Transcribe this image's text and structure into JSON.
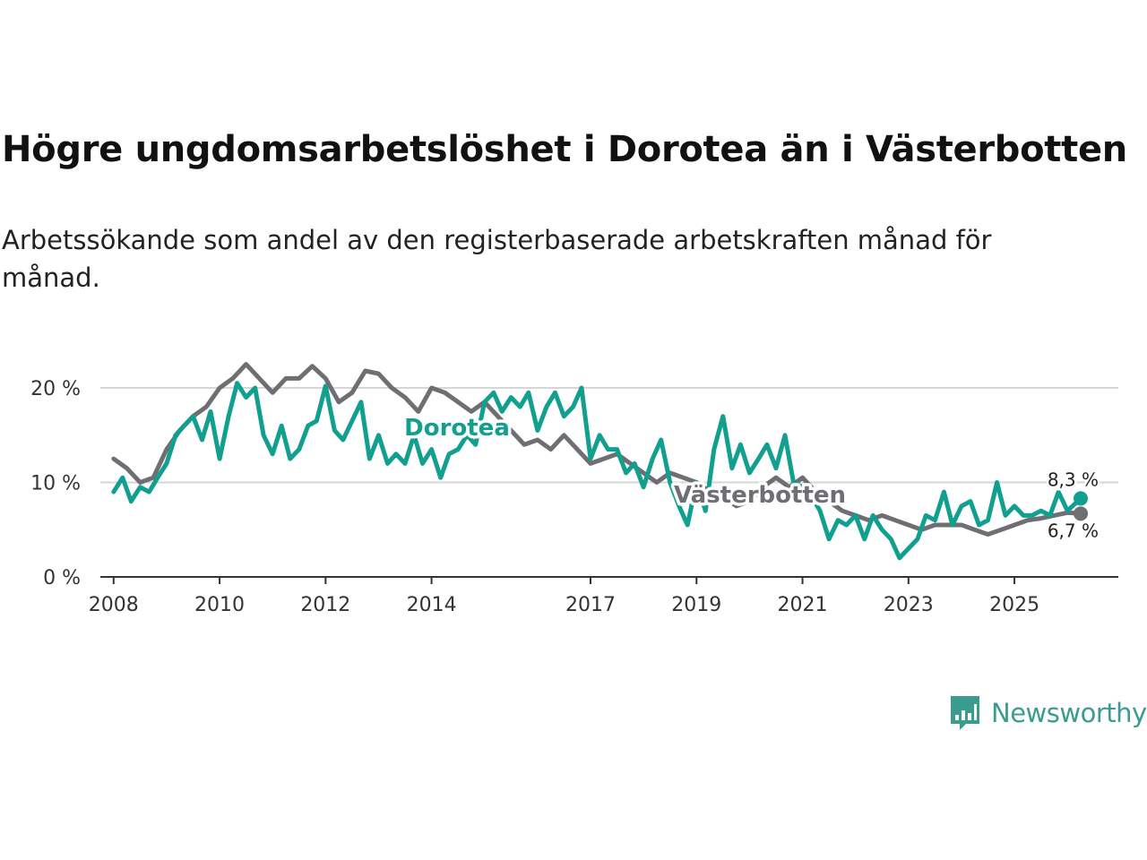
{
  "title": "Högre ungdomsarbetslöshet i Dorotea än i Västerbotten",
  "subtitle": "Arbetssökande som andel av den registerbaserade arbetskraften månad för månad.",
  "brand": {
    "name": "Newsworthy",
    "color": "#3a9b90",
    "icon": "chart-bubble-icon"
  },
  "chart_data": {
    "type": "line",
    "title": "Högre ungdomsarbetslöshet i Dorotea än i Västerbotten",
    "xlabel": "",
    "ylabel": "",
    "xlim": [
      2007.75,
      2026.96
    ],
    "ylim": [
      0,
      20
    ],
    "grid": true,
    "y_ticks": [
      0,
      10,
      20
    ],
    "y_tick_labels": [
      "0 %",
      "10 %",
      "20 %"
    ],
    "x_ticks": [
      2008,
      2010,
      2012,
      2014,
      2017,
      2019,
      2021,
      2023,
      2025
    ],
    "x_tick_labels": [
      "2008",
      "2010",
      "2012",
      "2014",
      "2017",
      "2019",
      "2021",
      "2023",
      "2025"
    ],
    "series": [
      {
        "name": "Västerbotten",
        "color": "#6e6e73",
        "last_label": "6,7 %",
        "points": [
          [
            2008.0,
            12.5
          ],
          [
            2008.25,
            11.5
          ],
          [
            2008.5,
            10.0
          ],
          [
            2008.75,
            10.5
          ],
          [
            2009.0,
            13.5
          ],
          [
            2009.25,
            15.5
          ],
          [
            2009.5,
            17.0
          ],
          [
            2009.75,
            18.0
          ],
          [
            2010.0,
            20.0
          ],
          [
            2010.25,
            21.0
          ],
          [
            2010.5,
            22.5
          ],
          [
            2010.75,
            21.0
          ],
          [
            2011.0,
            19.5
          ],
          [
            2011.25,
            21.0
          ],
          [
            2011.5,
            21.0
          ],
          [
            2011.75,
            22.3
          ],
          [
            2012.0,
            21.0
          ],
          [
            2012.25,
            18.5
          ],
          [
            2012.5,
            19.5
          ],
          [
            2012.75,
            21.8
          ],
          [
            2013.0,
            21.5
          ],
          [
            2013.25,
            20.0
          ],
          [
            2013.5,
            19.0
          ],
          [
            2013.75,
            17.5
          ],
          [
            2014.0,
            20.0
          ],
          [
            2014.25,
            19.5
          ],
          [
            2014.5,
            18.5
          ],
          [
            2014.75,
            17.5
          ],
          [
            2015.0,
            18.5
          ],
          [
            2015.25,
            17.0
          ],
          [
            2015.5,
            15.5
          ],
          [
            2015.75,
            14.0
          ],
          [
            2016.0,
            14.5
          ],
          [
            2016.25,
            13.5
          ],
          [
            2016.5,
            15.0
          ],
          [
            2016.75,
            13.5
          ],
          [
            2017.0,
            12.0
          ],
          [
            2017.25,
            12.5
          ],
          [
            2017.5,
            13.0
          ],
          [
            2017.75,
            12.0
          ],
          [
            2018.0,
            11.0
          ],
          [
            2018.25,
            10.0
          ],
          [
            2018.5,
            11.0
          ],
          [
            2018.75,
            10.5
          ],
          [
            2019.0,
            10.0
          ],
          [
            2019.25,
            9.0
          ],
          [
            2019.5,
            8.5
          ],
          [
            2019.75,
            7.5
          ],
          [
            2020.0,
            8.0
          ],
          [
            2020.25,
            9.5
          ],
          [
            2020.5,
            10.5
          ],
          [
            2020.75,
            9.5
          ],
          [
            2021.0,
            10.5
          ],
          [
            2021.25,
            9.0
          ],
          [
            2021.5,
            8.0
          ],
          [
            2021.75,
            7.0
          ],
          [
            2022.0,
            6.5
          ],
          [
            2022.25,
            6.0
          ],
          [
            2022.5,
            6.5
          ],
          [
            2022.75,
            6.0
          ],
          [
            2023.0,
            5.5
          ],
          [
            2023.25,
            5.0
          ],
          [
            2023.5,
            5.5
          ],
          [
            2023.75,
            5.5
          ],
          [
            2024.0,
            5.5
          ],
          [
            2024.25,
            5.0
          ],
          [
            2024.5,
            4.5
          ],
          [
            2024.75,
            5.0
          ],
          [
            2025.0,
            5.5
          ],
          [
            2025.25,
            6.0
          ],
          [
            2025.5,
            6.2
          ],
          [
            2025.75,
            6.5
          ],
          [
            2026.0,
            6.8
          ],
          [
            2026.25,
            6.7
          ]
        ]
      },
      {
        "name": "Dorotea",
        "color": "#119f8f",
        "last_label": "8,3 %",
        "points": [
          [
            2008.0,
            9.0
          ],
          [
            2008.17,
            10.5
          ],
          [
            2008.33,
            8.0
          ],
          [
            2008.5,
            9.5
          ],
          [
            2008.67,
            9.0
          ],
          [
            2008.83,
            10.5
          ],
          [
            2009.0,
            12.0
          ],
          [
            2009.17,
            15.0
          ],
          [
            2009.33,
            16.0
          ],
          [
            2009.5,
            17.0
          ],
          [
            2009.67,
            14.5
          ],
          [
            2009.83,
            17.5
          ],
          [
            2010.0,
            12.5
          ],
          [
            2010.17,
            17.0
          ],
          [
            2010.33,
            20.5
          ],
          [
            2010.5,
            19.0
          ],
          [
            2010.67,
            20.0
          ],
          [
            2010.83,
            15.0
          ],
          [
            2011.0,
            13.0
          ],
          [
            2011.17,
            16.0
          ],
          [
            2011.33,
            12.5
          ],
          [
            2011.5,
            13.5
          ],
          [
            2011.67,
            16.0
          ],
          [
            2011.83,
            16.5
          ],
          [
            2012.0,
            20.2
          ],
          [
            2012.17,
            15.5
          ],
          [
            2012.33,
            14.5
          ],
          [
            2012.5,
            16.5
          ],
          [
            2012.67,
            18.5
          ],
          [
            2012.83,
            12.5
          ],
          [
            2013.0,
            15.0
          ],
          [
            2013.17,
            12.0
          ],
          [
            2013.33,
            13.0
          ],
          [
            2013.5,
            12.0
          ],
          [
            2013.67,
            15.0
          ],
          [
            2013.83,
            12.0
          ],
          [
            2014.0,
            13.5
          ],
          [
            2014.17,
            10.5
          ],
          [
            2014.33,
            13.0
          ],
          [
            2014.5,
            13.5
          ],
          [
            2014.67,
            15.0
          ],
          [
            2014.83,
            14.0
          ],
          [
            2015.0,
            18.5
          ],
          [
            2015.17,
            19.5
          ],
          [
            2015.33,
            17.5
          ],
          [
            2015.5,
            19.0
          ],
          [
            2015.67,
            18.0
          ],
          [
            2015.83,
            19.5
          ],
          [
            2016.0,
            15.5
          ],
          [
            2016.17,
            18.0
          ],
          [
            2016.33,
            19.5
          ],
          [
            2016.5,
            17.0
          ],
          [
            2016.67,
            18.0
          ],
          [
            2016.83,
            20.0
          ],
          [
            2017.0,
            12.5
          ],
          [
            2017.17,
            15.0
          ],
          [
            2017.33,
            13.5
          ],
          [
            2017.5,
            13.5
          ],
          [
            2017.67,
            11.0
          ],
          [
            2017.83,
            12.0
          ],
          [
            2018.0,
            9.5
          ],
          [
            2018.17,
            12.5
          ],
          [
            2018.33,
            14.5
          ],
          [
            2018.5,
            10.0
          ],
          [
            2018.67,
            7.5
          ],
          [
            2018.83,
            5.5
          ],
          [
            2019.0,
            10.0
          ],
          [
            2019.17,
            7.0
          ],
          [
            2019.33,
            13.5
          ],
          [
            2019.5,
            17.0
          ],
          [
            2019.67,
            11.5
          ],
          [
            2019.83,
            14.0
          ],
          [
            2020.0,
            11.0
          ],
          [
            2020.17,
            12.5
          ],
          [
            2020.33,
            14.0
          ],
          [
            2020.5,
            11.5
          ],
          [
            2020.67,
            15.0
          ],
          [
            2020.83,
            10.0
          ],
          [
            2021.0,
            9.5
          ],
          [
            2021.17,
            8.5
          ],
          [
            2021.33,
            7.0
          ],
          [
            2021.5,
            4.0
          ],
          [
            2021.67,
            6.0
          ],
          [
            2021.83,
            5.5
          ],
          [
            2022.0,
            6.5
          ],
          [
            2022.17,
            4.0
          ],
          [
            2022.33,
            6.5
          ],
          [
            2022.5,
            5.0
          ],
          [
            2022.67,
            4.0
          ],
          [
            2022.83,
            2.0
          ],
          [
            2023.0,
            3.0
          ],
          [
            2023.17,
            4.0
          ],
          [
            2023.33,
            6.5
          ],
          [
            2023.5,
            6.0
          ],
          [
            2023.67,
            9.0
          ],
          [
            2023.83,
            5.5
          ],
          [
            2024.0,
            7.5
          ],
          [
            2024.17,
            8.0
          ],
          [
            2024.33,
            5.5
          ],
          [
            2024.5,
            6.0
          ],
          [
            2024.67,
            10.0
          ],
          [
            2024.83,
            6.5
          ],
          [
            2025.0,
            7.5
          ],
          [
            2025.17,
            6.5
          ],
          [
            2025.33,
            6.5
          ],
          [
            2025.5,
            7.0
          ],
          [
            2025.67,
            6.5
          ],
          [
            2025.83,
            9.0
          ],
          [
            2026.0,
            7.0
          ],
          [
            2026.25,
            8.3
          ]
        ]
      }
    ]
  }
}
